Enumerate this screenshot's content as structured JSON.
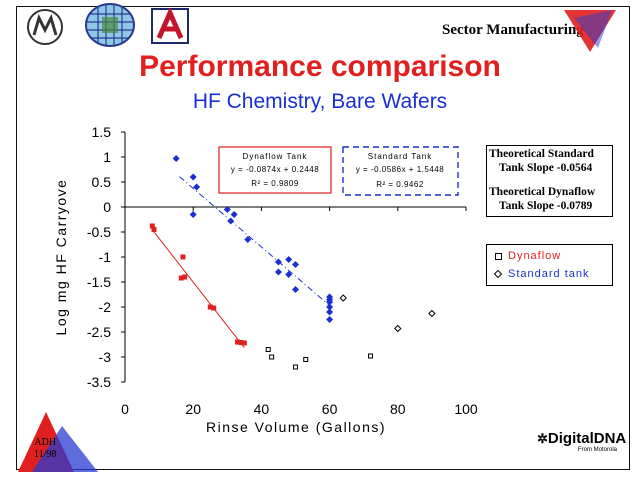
{
  "header": {
    "brand": "Sector Manufacturing",
    "logos": [
      "motorola-logo",
      "sematech-globe-logo",
      "university-of-arizona-logo"
    ]
  },
  "slide": {
    "title": "Performance comparison",
    "subtitle": "HF Chemistry, Bare Wafers"
  },
  "colors": {
    "title": "#e0201e",
    "subtitle": "#1a2fd1",
    "dynaflow": "#e0201e",
    "standard": "#1a2fd1",
    "outlier": "#000000"
  },
  "chart_data": {
    "type": "scatter",
    "xlabel": "Rinse Volume (Gallons)",
    "ylabel": "Log mg HF Carryove",
    "xlim": [
      0,
      100
    ],
    "ylim": [
      -3.5,
      1.5
    ],
    "x_ticks": [
      "0",
      "20",
      "40",
      "60",
      "80",
      "100"
    ],
    "y_ticks": [
      "1.5",
      "1",
      "0.5",
      "0",
      "-0.5",
      "-1",
      "-1.5",
      "-2",
      "-2.5",
      "-3",
      "-3.5"
    ],
    "grid": false,
    "series": [
      {
        "name": "Dynaflow",
        "marker": "square",
        "color": "#e0201e",
        "points": [
          [
            8,
            -0.38
          ],
          [
            8.5,
            -0.45
          ],
          [
            17,
            -1.0
          ],
          [
            16.5,
            -1.42
          ],
          [
            17.5,
            -1.4
          ],
          [
            25,
            -2.0
          ],
          [
            26,
            -2.02
          ],
          [
            33,
            -2.7
          ],
          [
            34,
            -2.71
          ],
          [
            35,
            -2.72
          ]
        ],
        "fit": {
          "equation": "y = -0.0874x + 0.2448",
          "r2": "R² = 0.9809",
          "x_range": [
            8,
            35
          ],
          "slope": -0.0874,
          "intercept": 0.2448
        }
      },
      {
        "name": "Standard tank",
        "marker": "diamond",
        "color": "#1a2fd1",
        "points": [
          [
            15,
            0.97
          ],
          [
            20,
            0.6
          ],
          [
            21,
            0.4
          ],
          [
            20,
            -0.15
          ],
          [
            30,
            -0.05
          ],
          [
            31,
            -0.28
          ],
          [
            32,
            -0.15
          ],
          [
            36,
            -0.65
          ],
          [
            45,
            -1.1
          ],
          [
            45,
            -1.3
          ],
          [
            48,
            -1.05
          ],
          [
            48,
            -1.35
          ],
          [
            50,
            -1.15
          ],
          [
            50,
            -1.65
          ],
          [
            60,
            -1.8
          ],
          [
            60,
            -1.85
          ],
          [
            60,
            -1.9
          ],
          [
            60,
            -2.0
          ],
          [
            60,
            -2.1
          ],
          [
            60,
            -2.25
          ]
        ],
        "fit": {
          "equation": "y = -0.0586x + 1.5448",
          "r2": "R² = 0.9462",
          "x_range": [
            16,
            60
          ],
          "slope": -0.0586,
          "intercept": 1.5448
        }
      },
      {
        "name": "",
        "marker": "hollow-square",
        "color": "#000000",
        "points": [
          [
            42,
            -2.85
          ],
          [
            43,
            -3.0
          ],
          [
            50,
            -3.2
          ],
          [
            53,
            -3.05
          ],
          [
            72,
            -2.98
          ]
        ]
      },
      {
        "name": "",
        "marker": "hollow-diamond",
        "color": "#000000",
        "points": [
          [
            64,
            -1.82
          ],
          [
            80,
            -2.43
          ],
          [
            90,
            -2.13
          ]
        ]
      }
    ],
    "annotations": {
      "dynaflow_box": {
        "title": "Dynaflow Tank",
        "equation": "y = -0.0874x + 0.2448",
        "r2": "R² = 0.9809"
      },
      "standard_box": {
        "title": "Standard Tank",
        "equation": "y = -0.0586x + 1.5448",
        "r2": "R² = 0.9462"
      }
    },
    "legend": [
      {
        "label": "Dynaflow",
        "marker": "square"
      },
      {
        "label": "Standard tank",
        "marker": "diamond"
      }
    ],
    "legend_placement": "right"
  },
  "slopes": {
    "standard_title": "Theoretical Standard",
    "standard_value": "Tank Slope  -0.0564",
    "dynaflow_title": "Theoretical Dynaflow",
    "dynaflow_value": "Tank Slope  -0.0789"
  },
  "footer": {
    "badge_line1": "ADH",
    "badge_line2": "11/98",
    "dna_label": "DigitalDNA",
    "dna_sub": "From Motorola"
  }
}
